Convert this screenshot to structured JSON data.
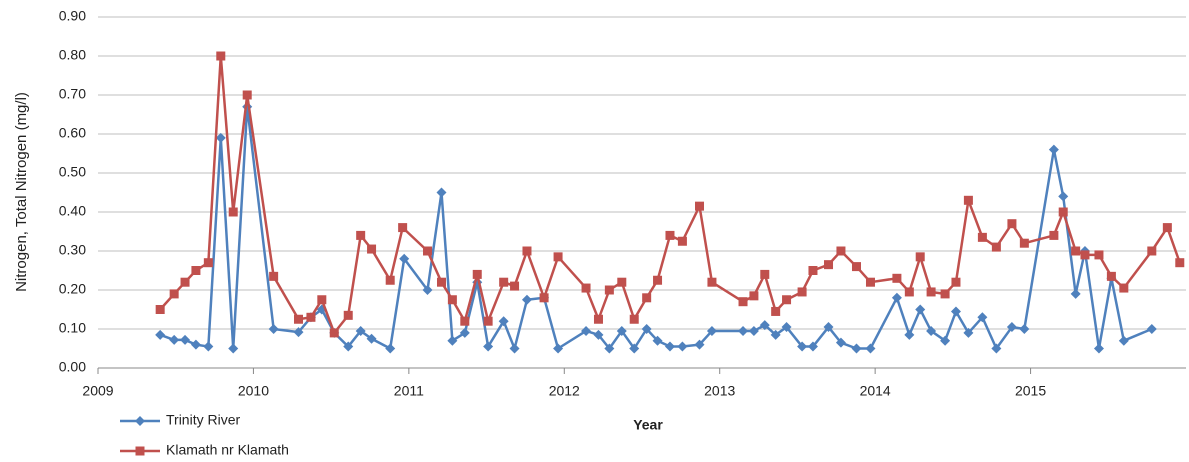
{
  "chart_data": {
    "type": "line",
    "x_label": "Year",
    "y_label": "Nitrogen, Total Nitrogen (mg/l)",
    "xlim": [
      2009,
      2016
    ],
    "xticks": [
      2009,
      2010,
      2011,
      2012,
      2013,
      2014,
      2015
    ],
    "ylim": [
      0,
      0.9
    ],
    "yticks": [
      {
        "value": 0,
        "label": "0.00"
      },
      {
        "value": 0.1,
        "label": "0.10"
      },
      {
        "value": 0.2,
        "label": "0.20"
      },
      {
        "value": 0.3,
        "label": "0.30"
      },
      {
        "value": 0.4,
        "label": "0.40"
      },
      {
        "value": 0.5,
        "label": "0.50"
      },
      {
        "value": 0.6,
        "label": "0.60"
      },
      {
        "value": 0.7,
        "label": "0.70"
      },
      {
        "value": 0.8,
        "label": "0.80"
      },
      {
        "value": 0.9,
        "label": "0.90"
      }
    ],
    "grid": true,
    "legend": "bottom-left",
    "series": [
      {
        "name": "Trinity River",
        "color": "#4f81bd",
        "marker": "diamond",
        "x": [
          2009.4,
          2009.49,
          2009.56,
          2009.63,
          2009.71,
          2009.79,
          2009.87,
          2009.96,
          2010.13,
          2010.29,
          2010.37,
          2010.44,
          2010.52,
          2010.61,
          2010.69,
          2010.76,
          2010.88,
          2010.97,
          2011.12,
          2011.21,
          2011.28,
          2011.36,
          2011.44,
          2011.51,
          2011.61,
          2011.68,
          2011.76,
          2011.87,
          2011.96,
          2012.14,
          2012.22,
          2012.29,
          2012.37,
          2012.45,
          2012.53,
          2012.6,
          2012.68,
          2012.76,
          2012.87,
          2012.95,
          2013.15,
          2013.22,
          2013.29,
          2013.36,
          2013.43,
          2013.53,
          2013.6,
          2013.7,
          2013.78,
          2013.88,
          2013.97,
          2014.14,
          2014.22,
          2014.29,
          2014.36,
          2014.45,
          2014.52,
          2014.6,
          2014.69,
          2014.78,
          2014.88,
          2014.96,
          2015.15,
          2015.21,
          2015.29,
          2015.35,
          2015.44,
          2015.52,
          2015.6,
          2015.78
        ],
        "values": [
          0.085,
          0.072,
          0.072,
          0.06,
          0.055,
          0.59,
          0.05,
          0.67,
          0.1,
          0.092,
          0.13,
          0.15,
          0.09,
          0.055,
          0.095,
          0.075,
          0.05,
          0.28,
          0.2,
          0.45,
          0.07,
          0.09,
          0.22,
          0.055,
          0.12,
          0.05,
          0.175,
          0.18,
          0.05,
          0.095,
          0.085,
          0.05,
          0.095,
          0.05,
          0.1,
          0.07,
          0.055,
          0.055,
          0.06,
          0.095,
          0.095,
          0.095,
          0.11,
          0.085,
          0.105,
          0.055,
          0.055,
          0.105,
          0.065,
          0.05,
          0.05,
          0.18,
          0.085,
          0.15,
          0.095,
          0.07,
          0.145,
          0.09,
          0.13,
          0.05,
          0.105,
          0.1,
          0.56,
          0.44,
          0.19,
          0.3,
          0.05,
          0.23,
          0.07,
          0.1
        ]
      },
      {
        "name": "Klamath nr Klamath",
        "color": "#c0504d",
        "marker": "square",
        "x": [
          2009.4,
          2009.49,
          2009.56,
          2009.63,
          2009.71,
          2009.79,
          2009.87,
          2009.96,
          2010.13,
          2010.29,
          2010.37,
          2010.44,
          2010.52,
          2010.61,
          2010.69,
          2010.76,
          2010.88,
          2010.96,
          2011.12,
          2011.21,
          2011.28,
          2011.36,
          2011.44,
          2011.51,
          2011.61,
          2011.68,
          2011.76,
          2011.87,
          2011.96,
          2012.14,
          2012.22,
          2012.29,
          2012.37,
          2012.45,
          2012.53,
          2012.6,
          2012.68,
          2012.76,
          2012.87,
          2012.95,
          2013.15,
          2013.22,
          2013.29,
          2013.36,
          2013.43,
          2013.53,
          2013.6,
          2013.7,
          2013.78,
          2013.88,
          2013.97,
          2014.14,
          2014.22,
          2014.29,
          2014.36,
          2014.45,
          2014.52,
          2014.6,
          2014.69,
          2014.78,
          2014.88,
          2014.96,
          2015.15,
          2015.21,
          2015.29,
          2015.35,
          2015.44,
          2015.52,
          2015.6,
          2015.78,
          2015.88,
          2015.96
        ],
        "values": [
          0.15,
          0.19,
          0.22,
          0.25,
          0.27,
          0.8,
          0.4,
          0.7,
          0.235,
          0.125,
          0.13,
          0.175,
          0.09,
          0.135,
          0.34,
          0.305,
          0.225,
          0.36,
          0.3,
          0.22,
          0.175,
          0.12,
          0.24,
          0.12,
          0.22,
          0.21,
          0.3,
          0.18,
          0.285,
          0.205,
          0.125,
          0.2,
          0.22,
          0.125,
          0.18,
          0.225,
          0.34,
          0.325,
          0.415,
          0.22,
          0.17,
          0.185,
          0.24,
          0.145,
          0.175,
          0.195,
          0.25,
          0.265,
          0.3,
          0.26,
          0.22,
          0.23,
          0.195,
          0.285,
          0.195,
          0.19,
          0.22,
          0.43,
          0.335,
          0.31,
          0.37,
          0.32,
          0.34,
          0.4,
          0.3,
          0.29,
          0.29,
          0.235,
          0.205,
          0.3,
          0.36,
          0.27
        ]
      }
    ]
  }
}
